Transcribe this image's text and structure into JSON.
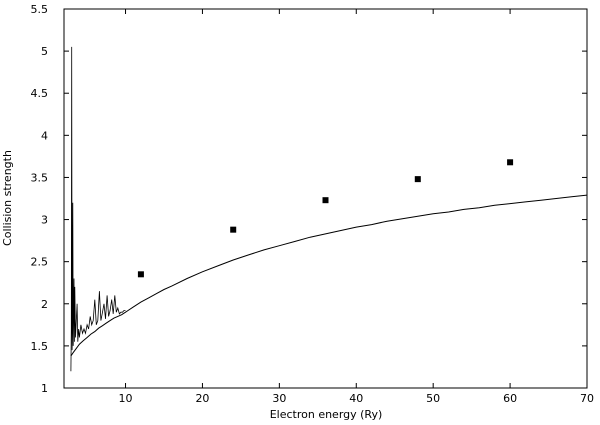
{
  "chart_data": {
    "type": "line",
    "title": "",
    "xlabel": "Electron energy (Ry)",
    "ylabel": "Collision strength",
    "xlim": [
      2,
      70
    ],
    "ylim": [
      1,
      5.5
    ],
    "x_ticks": [
      10,
      20,
      30,
      40,
      50,
      60,
      70
    ],
    "y_ticks": [
      1,
      1.5,
      2,
      2.5,
      3,
      3.5,
      4,
      4.5,
      5,
      5.5
    ],
    "x_tick_labels": [
      "10",
      "20",
      "30",
      "40",
      "50",
      "60",
      "70"
    ],
    "y_tick_labels": [
      "1",
      "1.5",
      "2",
      "2.5",
      "3",
      "3.5",
      "4",
      "4.5",
      "5",
      "5.5"
    ],
    "grid": false,
    "legend": "none",
    "series": [
      {
        "style": "line",
        "color": "#000000",
        "x": [
          2.9,
          3.2,
          3.6,
          4.0,
          4.5,
          5.0,
          5.5,
          6.0,
          6.5,
          7.0,
          7.5,
          8.0,
          8.5,
          9.0,
          9.5,
          10.0,
          11,
          12,
          13,
          14,
          15,
          16,
          18,
          20,
          22,
          24,
          26,
          28,
          30,
          32,
          34,
          36,
          38,
          40,
          42,
          44,
          46,
          48,
          50,
          52,
          54,
          56,
          58,
          60,
          62,
          64,
          66,
          68,
          70
        ],
        "y": [
          1.38,
          1.42,
          1.47,
          1.52,
          1.56,
          1.6,
          1.64,
          1.67,
          1.71,
          1.74,
          1.77,
          1.8,
          1.83,
          1.85,
          1.87,
          1.9,
          1.96,
          2.02,
          2.07,
          2.12,
          2.17,
          2.21,
          2.3,
          2.38,
          2.45,
          2.52,
          2.58,
          2.64,
          2.69,
          2.74,
          2.79,
          2.83,
          2.87,
          2.91,
          2.94,
          2.98,
          3.01,
          3.04,
          3.07,
          3.09,
          3.12,
          3.14,
          3.17,
          3.19,
          3.21,
          3.23,
          3.25,
          3.27,
          3.29
        ]
      },
      {
        "style": "resonance",
        "color": "#000000",
        "x": [
          2.9,
          2.95,
          3.0,
          3.05,
          3.1,
          3.15,
          3.2,
          3.25,
          3.3,
          3.35,
          3.4,
          3.5,
          3.6,
          3.7,
          3.8,
          3.9,
          4.0,
          4.2,
          4.4,
          4.6,
          4.8,
          5.0,
          5.2,
          5.4,
          5.6,
          5.8,
          6.0,
          6.2,
          6.4,
          6.6,
          6.8,
          7.0,
          7.2,
          7.4,
          7.6,
          7.8,
          8.0,
          8.2,
          8.4,
          8.6,
          8.8,
          9.0,
          9.2,
          9.4,
          9.6,
          9.8,
          10.0
        ],
        "y": [
          1.2,
          1.7,
          5.05,
          1.45,
          1.75,
          3.2,
          1.5,
          1.9,
          2.3,
          1.55,
          2.2,
          1.6,
          1.8,
          2.0,
          1.55,
          1.7,
          1.6,
          1.75,
          1.65,
          1.7,
          1.65,
          1.75,
          1.7,
          1.85,
          1.75,
          1.8,
          2.05,
          1.75,
          1.8,
          2.15,
          1.8,
          1.9,
          2.0,
          1.82,
          2.1,
          1.85,
          1.92,
          2.05,
          1.88,
          2.1,
          1.9,
          1.95,
          1.88,
          1.9,
          1.9,
          1.92,
          1.92
        ]
      },
      {
        "style": "markers",
        "marker": "square",
        "color": "#000000",
        "x": [
          12,
          24,
          36,
          48,
          60
        ],
        "y": [
          2.35,
          2.88,
          3.23,
          3.48,
          3.68
        ]
      }
    ]
  }
}
